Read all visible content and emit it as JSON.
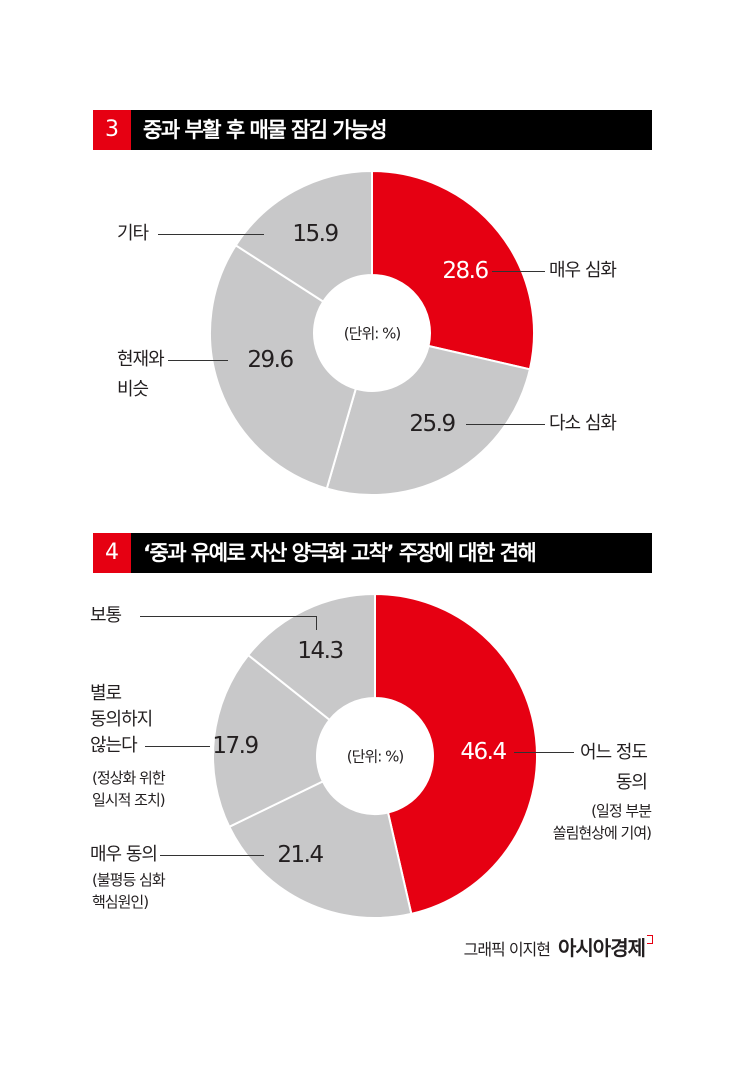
{
  "colors": {
    "highlight": "#e60012",
    "other": "#c8c8c9",
    "header": "#000000"
  },
  "chart_data": [
    {
      "type": "pie",
      "donut": true,
      "number": "3",
      "title": "중과 부활 후 매물 잠김 가능성",
      "unit_label": "(단위: %)",
      "categories": [
        "매우 심화",
        "다소 심화",
        "현재와\n비슷",
        "기타"
      ],
      "values": [
        28.6,
        25.9,
        29.6,
        15.9
      ],
      "value_labels": [
        "28.6",
        "25.9",
        "29.6",
        "15.9"
      ],
      "highlight_index": 0
    },
    {
      "type": "pie",
      "donut": true,
      "number": "4",
      "title": "‘중과 유예로 자산 양극화 고착’ 주장에 대한 견해",
      "unit_label": "(단위: %)",
      "categories": [
        "어느 정도\n동의",
        "매우 동의",
        "별로\n동의하지\n않는다",
        "보통"
      ],
      "notes": [
        "(일정 부분\n쏠림현상에 기여)",
        "(불평등 심화\n핵심원인)",
        "(정상화 위한\n일시적 조치)",
        ""
      ],
      "values": [
        46.4,
        21.4,
        17.9,
        14.3
      ],
      "value_labels": [
        "46.4",
        "21.4",
        "17.9",
        "14.3"
      ],
      "highlight_index": 0
    }
  ],
  "footer": {
    "credit": "그래픽 이지현",
    "brand": "아시아경제"
  }
}
